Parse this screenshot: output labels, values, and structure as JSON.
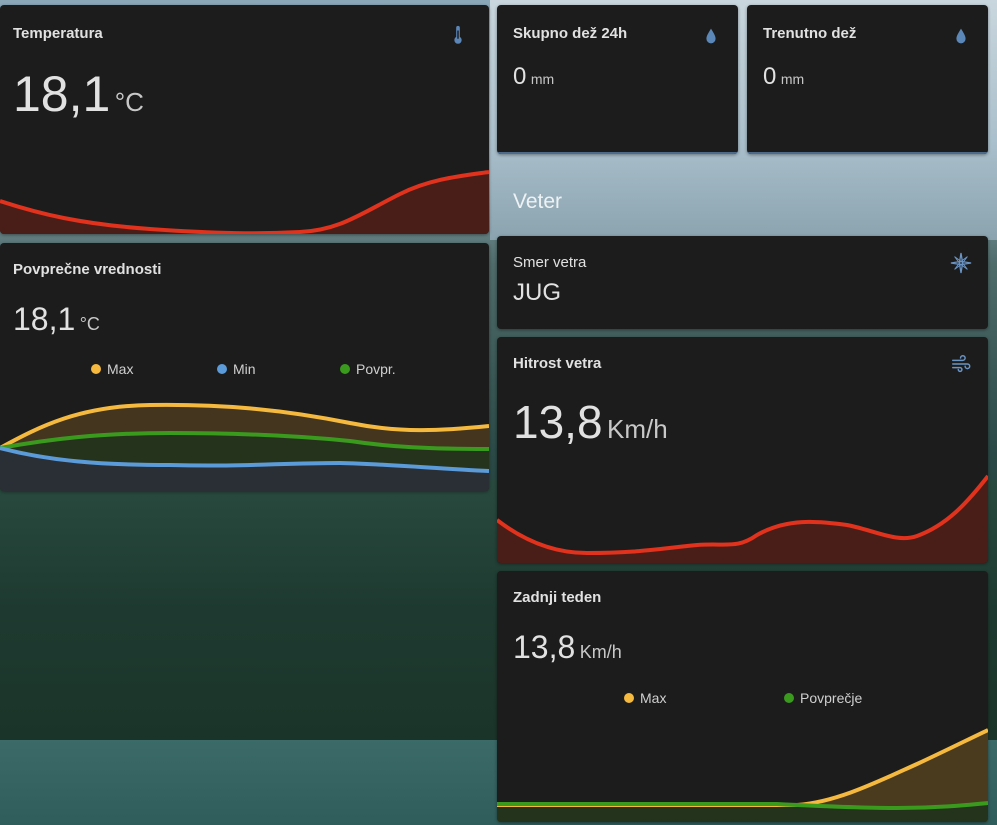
{
  "temperature": {
    "title": "Temperatura",
    "value": "18,1",
    "unit": "°C",
    "icon": "thermometer-icon",
    "color": "#e0321c"
  },
  "rain_24h": {
    "title": "Skupno dež 24h",
    "value": "0",
    "unit": "mm",
    "icon": "water-drop-icon"
  },
  "rain_now": {
    "title": "Trenutno dež",
    "value": "0",
    "unit": "mm",
    "icon": "water-drop-icon"
  },
  "averages": {
    "title": "Povprečne vrednosti",
    "value": "18,1",
    "unit": "°C",
    "legend": [
      {
        "label": "Max",
        "color": "#f4b93e"
      },
      {
        "label": "Min",
        "color": "#5b9bd9"
      },
      {
        "label": "Povpr.",
        "color": "#3a9a1e"
      }
    ]
  },
  "wind_section": {
    "title": "Veter"
  },
  "wind_direction": {
    "title": "Smer vetra",
    "value": "JUG",
    "icon": "compass-rose-icon"
  },
  "wind_speed": {
    "title": "Hitrost vetra",
    "value": "13,8",
    "unit": "Km/h",
    "icon": "wind-icon",
    "color": "#e0321c"
  },
  "last_week": {
    "title": "Zadnji teden",
    "value": "13,8",
    "unit": "Km/h",
    "legend": [
      {
        "label": "Max",
        "color": "#f4b93e"
      },
      {
        "label": "Povprečje",
        "color": "#3a9a1e"
      }
    ]
  }
}
